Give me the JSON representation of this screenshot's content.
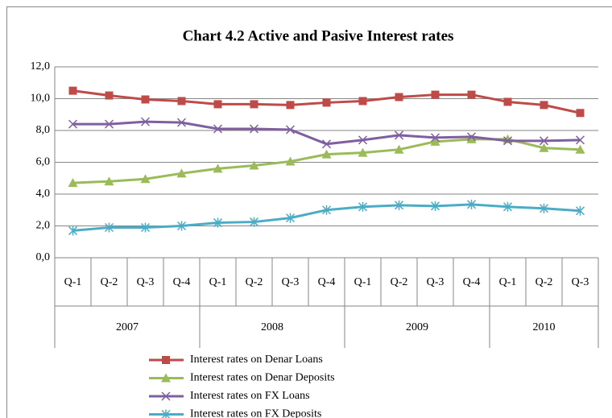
{
  "chart_data": {
    "type": "line",
    "title": "Chart 4.2  Active and Pasive Interest rates",
    "categories": [
      "Q-1",
      "Q-2",
      "Q-3",
      "Q-4",
      "Q-1",
      "Q-2",
      "Q-3",
      "Q-4",
      "Q-1",
      "Q-2",
      "Q-3",
      "Q-4",
      "Q-1",
      "Q-2",
      "Q-3"
    ],
    "category_groups": [
      {
        "label": "2007",
        "count": 4
      },
      {
        "label": "2008",
        "count": 4
      },
      {
        "label": "2009",
        "count": 4
      },
      {
        "label": "2010",
        "count": 3
      }
    ],
    "ylim": [
      0,
      12
    ],
    "yticks": [
      {
        "value": 0,
        "label": "0,0"
      },
      {
        "value": 2,
        "label": "2,0"
      },
      {
        "value": 4,
        "label": "4,0"
      },
      {
        "value": 6,
        "label": "6,0"
      },
      {
        "value": 8,
        "label": "8,0"
      },
      {
        "value": 10,
        "label": "10,0"
      },
      {
        "value": 12,
        "label": "12,0"
      }
    ],
    "grid": true,
    "legend": "bottom",
    "series": [
      {
        "name": "Interest rates on Denar Loans",
        "color": "#be4b48",
        "marker": "square",
        "values": [
          10.5,
          10.2,
          9.95,
          9.85,
          9.65,
          9.65,
          9.6,
          9.75,
          9.85,
          10.1,
          10.25,
          10.25,
          9.8,
          9.6,
          9.1
        ]
      },
      {
        "name": "Interest rates on Denar Deposits",
        "color": "#9bbb59",
        "marker": "triangle",
        "values": [
          4.7,
          4.8,
          4.95,
          5.3,
          5.6,
          5.8,
          6.05,
          6.5,
          6.6,
          6.8,
          7.3,
          7.45,
          7.45,
          6.9,
          6.8
        ]
      },
      {
        "name": "Interest rates on FX Loans",
        "color": "#7f5f9f",
        "marker": "x",
        "values": [
          8.4,
          8.4,
          8.55,
          8.5,
          8.1,
          8.1,
          8.05,
          7.15,
          7.4,
          7.7,
          7.55,
          7.6,
          7.35,
          7.35,
          7.4
        ]
      },
      {
        "name": "Interest rates on FX Deposits",
        "color": "#4bacc6",
        "marker": "star",
        "values": [
          1.7,
          1.9,
          1.9,
          2.0,
          2.2,
          2.25,
          2.5,
          3.0,
          3.2,
          3.3,
          3.25,
          3.35,
          3.2,
          3.1,
          2.95
        ]
      }
    ]
  }
}
